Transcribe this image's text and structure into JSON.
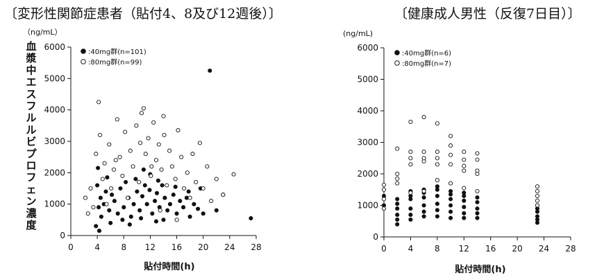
{
  "chart_data": [
    {
      "type": "scatter",
      "title": "〔変形性関節症患者（貼付4、8及び12週後）〕",
      "ylabel": "血漿中エスフルルビプロフェン濃度",
      "y_unit": "（ng/mL）",
      "xlabel": "貼付時間(h)",
      "xlim": [
        0,
        28
      ],
      "ylim": [
        0,
        6000
      ],
      "x_ticks": [
        "0",
        "4",
        "8",
        "12",
        "16",
        "20",
        "24",
        "28"
      ],
      "y_ticks": [
        "0",
        "1000",
        "2000",
        "3000",
        "4000",
        "5000",
        "6000"
      ],
      "legend_position": "top-left",
      "series": [
        {
          "name": "40mg群(n=101)",
          "marker": "filled-circle",
          "points": [
            [
              3.8,
              300
            ],
            [
              4.2,
              900
            ],
            [
              4.5,
              1200
            ],
            [
              4.0,
              1600
            ],
            [
              4.6,
              600
            ],
            [
              5.0,
              1000
            ],
            [
              5.3,
              1400
            ],
            [
              4.1,
              2150
            ],
            [
              5.8,
              800
            ],
            [
              6.2,
              1300
            ],
            [
              6.6,
              1100
            ],
            [
              7.1,
              700
            ],
            [
              7.5,
              1500
            ],
            [
              8.0,
              900
            ],
            [
              8.3,
              1700
            ],
            [
              8.7,
              1200
            ],
            [
              9.1,
              600
            ],
            [
              9.5,
              1000
            ],
            [
              10.0,
              1400
            ],
            [
              10.4,
              800
            ],
            [
              10.8,
              1250
            ],
            [
              11.2,
              1600
            ],
            [
              11.5,
              1000
            ],
            [
              11.9,
              1450
            ],
            [
              12.3,
              700
            ],
            [
              12.7,
              1100
            ],
            [
              13.0,
              1350
            ],
            [
              13.4,
              900
            ],
            [
              13.8,
              1600
            ],
            [
              14.2,
              1200
            ],
            [
              14.6,
              800
            ],
            [
              15.0,
              1000
            ],
            [
              15.5,
              1300
            ],
            [
              16.0,
              700
            ],
            [
              16.5,
              1100
            ],
            [
              17.0,
              900
            ],
            [
              17.5,
              1200
            ],
            [
              18.0,
              600
            ],
            [
              18.6,
              1000
            ],
            [
              19.2,
              850
            ],
            [
              20.0,
              700
            ],
            [
              21.0,
              5250
            ],
            [
              22.0,
              800
            ],
            [
              23.0,
              1300
            ],
            [
              27.2,
              550
            ],
            [
              4.3,
              150
            ],
            [
              6.0,
              400
            ],
            [
              7.8,
              500
            ],
            [
              9.8,
              1800
            ],
            [
              11.0,
              2100
            ],
            [
              12.0,
              1950
            ],
            [
              13.2,
              1750
            ],
            [
              14.0,
              500
            ],
            [
              15.8,
              1550
            ],
            [
              17.8,
              1400
            ],
            [
              19.6,
              1500
            ],
            [
              5.5,
              1850
            ],
            [
              8.9,
              350
            ],
            [
              10.6,
              550
            ],
            [
              12.9,
              450
            ]
          ]
        },
        {
          "name": "80mg群(n=99)",
          "marker": "open-circle",
          "points": [
            [
              2.2,
              1200
            ],
            [
              2.6,
              700
            ],
            [
              3.0,
              1500
            ],
            [
              3.4,
              900
            ],
            [
              3.8,
              2600
            ],
            [
              4.2,
              4250
            ],
            [
              4.4,
              3200
            ],
            [
              4.8,
              1800
            ],
            [
              5.1,
              2300
            ],
            [
              5.4,
              1000
            ],
            [
              5.8,
              2900
            ],
            [
              6.1,
              1500
            ],
            [
              6.5,
              2100
            ],
            [
              7.0,
              3700
            ],
            [
              7.4,
              2500
            ],
            [
              7.8,
              1900
            ],
            [
              8.2,
              3300
            ],
            [
              8.6,
              1200
            ],
            [
              9.0,
              2700
            ],
            [
              9.4,
              2200
            ],
            [
              9.9,
              3500
            ],
            [
              10.3,
              1700
            ],
            [
              10.7,
              3900
            ],
            [
              11.0,
              4050
            ],
            [
              11.3,
              2600
            ],
            [
              11.7,
              3100
            ],
            [
              12.1,
              1900
            ],
            [
              12.5,
              3600
            ],
            [
              12.9,
              2400
            ],
            [
              13.3,
              2900
            ],
            [
              13.7,
              2100
            ],
            [
              14.1,
              3200
            ],
            [
              14.5,
              1600
            ],
            [
              14.9,
              2700
            ],
            [
              15.3,
              2200
            ],
            [
              15.8,
              1800
            ],
            [
              16.2,
              3350
            ],
            [
              16.7,
              2500
            ],
            [
              17.1,
              1500
            ],
            [
              17.6,
              2000
            ],
            [
              18.0,
              1200
            ],
            [
              18.4,
              2600
            ],
            [
              18.9,
              1700
            ],
            [
              19.5,
              2950
            ],
            [
              20.0,
              1500
            ],
            [
              20.6,
              2200
            ],
            [
              21.2,
              1100
            ],
            [
              22.0,
              1800
            ],
            [
              23.0,
              1300
            ],
            [
              24.6,
              1950
            ],
            [
              14.0,
              3800
            ],
            [
              10.5,
              2950
            ],
            [
              6.8,
              2400
            ],
            [
              12.2,
              2200
            ],
            [
              16.0,
              500
            ],
            [
              13.5,
              800
            ]
          ]
        }
      ]
    },
    {
      "type": "scatter",
      "title": "〔健康成人男性（反復7日目）〕",
      "ylabel": "",
      "y_unit": "(ng/mL)",
      "xlabel": "貼付時間(h)",
      "xlim": [
        0,
        28
      ],
      "ylim": [
        0,
        6000
      ],
      "x_ticks": [
        "0",
        "4",
        "8",
        "12",
        "16",
        "20",
        "24",
        "28"
      ],
      "y_ticks": [
        "0",
        "1000",
        "2000",
        "3000",
        "4000",
        "5000",
        "6000"
      ],
      "legend_position": "top-left",
      "series": [
        {
          "name": "40mg群(n=6)",
          "marker": "filled-circle",
          "points": [
            [
              0,
              1000
            ],
            [
              0,
              1300
            ],
            [
              2,
              400
            ],
            [
              2,
              550
            ],
            [
              2,
              700
            ],
            [
              2,
              900
            ],
            [
              2,
              1050
            ],
            [
              2,
              1200
            ],
            [
              4,
              550
            ],
            [
              4,
              700
            ],
            [
              4,
              900
            ],
            [
              4,
              1200
            ],
            [
              4,
              1300
            ],
            [
              4,
              1450
            ],
            [
              6,
              650
            ],
            [
              6,
              800
            ],
            [
              6,
              1000
            ],
            [
              6,
              1250
            ],
            [
              6,
              1400
            ],
            [
              6,
              1500
            ],
            [
              8,
              650
            ],
            [
              8,
              850
            ],
            [
              8,
              1050
            ],
            [
              8,
              1300
            ],
            [
              8,
              1500
            ],
            [
              8,
              1600
            ],
            [
              10,
              600
            ],
            [
              10,
              800
            ],
            [
              10,
              1000
            ],
            [
              10,
              1200
            ],
            [
              10,
              1350
            ],
            [
              10,
              1450
            ],
            [
              12,
              600
            ],
            [
              12,
              750
            ],
            [
              12,
              950
            ],
            [
              12,
              1150
            ],
            [
              12,
              1300
            ],
            [
              12,
              1400
            ],
            [
              14,
              600
            ],
            [
              14,
              750
            ],
            [
              14,
              900
            ],
            [
              14,
              1100
            ],
            [
              14,
              1250
            ],
            [
              23,
              450
            ],
            [
              23,
              550
            ],
            [
              23,
              650
            ],
            [
              23,
              800
            ],
            [
              23,
              900
            ],
            [
              23,
              1000
            ]
          ]
        },
        {
          "name": "80mg群(n=7)",
          "marker": "open-circle",
          "points": [
            [
              0,
              1200
            ],
            [
              0,
              1500
            ],
            [
              0,
              1650
            ],
            [
              0,
              900
            ],
            [
              2,
              1700
            ],
            [
              2,
              1850
            ],
            [
              2,
              2000
            ],
            [
              2,
              2800
            ],
            [
              4,
              1400
            ],
            [
              4,
              2300
            ],
            [
              4,
              2500
            ],
            [
              4,
              2700
            ],
            [
              4,
              3650
            ],
            [
              6,
              1450
            ],
            [
              6,
              2400
            ],
            [
              6,
              2500
            ],
            [
              6,
              2700
            ],
            [
              6,
              3800
            ],
            [
              8,
              1800
            ],
            [
              8,
              2300
            ],
            [
              8,
              2500
            ],
            [
              8,
              2700
            ],
            [
              8,
              3600
            ],
            [
              10,
              1700
            ],
            [
              10,
              2300
            ],
            [
              10,
              2600
            ],
            [
              10,
              2900
            ],
            [
              10,
              3200
            ],
            [
              12,
              1550
            ],
            [
              12,
              2100
            ],
            [
              12,
              2250
            ],
            [
              12,
              2450
            ],
            [
              12,
              2700
            ],
            [
              14,
              1450
            ],
            [
              14,
              2000
            ],
            [
              14,
              2100
            ],
            [
              14,
              2450
            ],
            [
              14,
              2650
            ],
            [
              23,
              1000
            ],
            [
              23,
              1150
            ],
            [
              23,
              1300
            ],
            [
              23,
              1450
            ],
            [
              23,
              1600
            ]
          ]
        }
      ]
    }
  ]
}
